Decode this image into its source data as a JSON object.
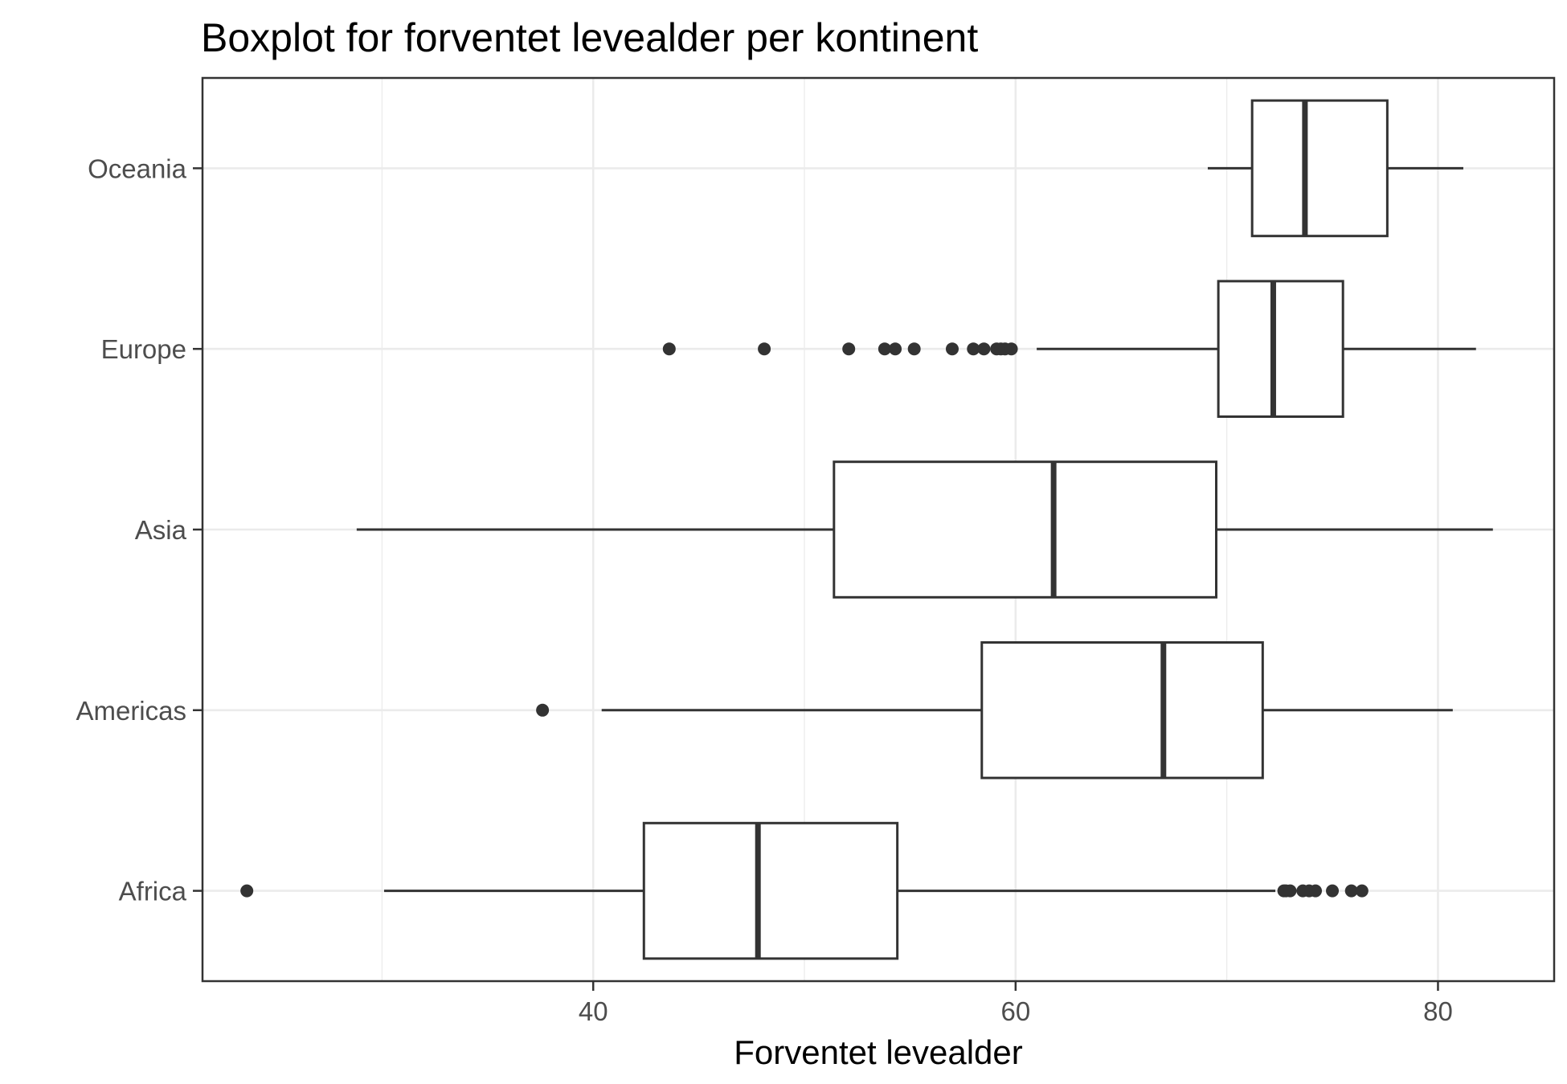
{
  "chart_data": {
    "type": "boxplot",
    "orientation": "horizontal",
    "title": "Boxplot for forventet levealder per kontinent",
    "xlabel": "Forventet levealder",
    "ylabel": "",
    "xlim": [
      21.5,
      85.5
    ],
    "xticks": [
      40,
      60,
      80
    ],
    "grid": true,
    "legend": "none",
    "colors": {
      "box_stroke": "#333333",
      "box_fill": "#ffffff",
      "grid": "#ebebeb",
      "panel_border": "#333333"
    },
    "categories": [
      "Africa",
      "Americas",
      "Asia",
      "Europe",
      "Oceania"
    ],
    "boxes": [
      {
        "category": "Africa",
        "whisker_low": 30.1,
        "q1": 42.4,
        "median": 47.8,
        "q3": 54.4,
        "whisker_high": 72.3,
        "outliers": [
          23.6,
          72.7,
          72.8,
          73.0,
          73.6,
          73.9,
          74.2,
          75.0,
          75.9,
          76.4
        ]
      },
      {
        "category": "Americas",
        "whisker_low": 40.4,
        "q1": 58.4,
        "median": 67.0,
        "q3": 71.7,
        "whisker_high": 80.7,
        "outliers": [
          37.6
        ]
      },
      {
        "category": "Asia",
        "whisker_low": 28.8,
        "q1": 51.4,
        "median": 61.8,
        "q3": 69.5,
        "whisker_high": 82.6,
        "outliers": []
      },
      {
        "category": "Europe",
        "whisker_low": 61.0,
        "q1": 69.6,
        "median": 72.2,
        "q3": 75.5,
        "whisker_high": 81.8,
        "outliers": [
          43.6,
          48.1,
          52.1,
          53.8,
          54.3,
          55.2,
          57.0,
          58.0,
          58.5,
          59.1,
          59.3,
          59.5,
          59.8
        ]
      },
      {
        "category": "Oceania",
        "whisker_low": 69.1,
        "q1": 71.2,
        "median": 73.7,
        "q3": 77.6,
        "whisker_high": 81.2,
        "outliers": []
      }
    ]
  }
}
